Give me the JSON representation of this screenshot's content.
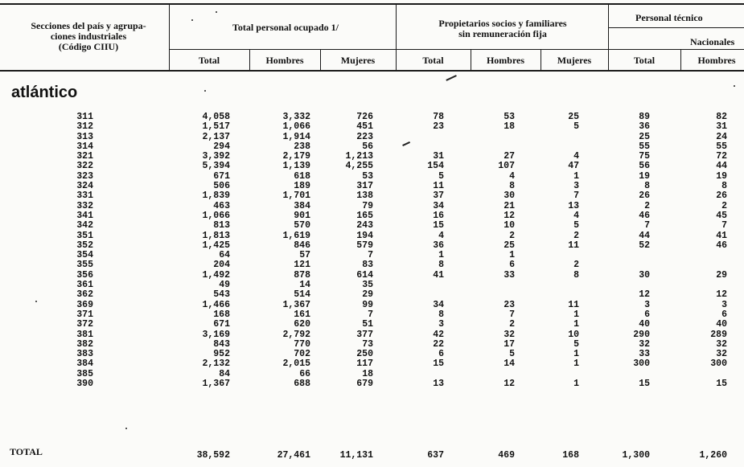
{
  "header": {
    "sections": "Secciones del país y agrupa-",
    "sections2": "ciones industriales",
    "sections3": "(Código CIIU)",
    "total": "Total personal ocupado 1/",
    "owners": "Propietarios socios y familiares",
    "owners2": "sin remuneración fija",
    "tech": "Personal técnico",
    "nacionales": "Nacionales",
    "sub": [
      "Total",
      "Hombres",
      "Mujeres",
      "Total",
      "Hombres",
      "Mujeres",
      "Total",
      "Hombres"
    ]
  },
  "region": "atlántico",
  "rows": [
    {
      "code": "311",
      "t": "4,058",
      "h": "3,332",
      "m": "726",
      "pt": "78",
      "ph": "53",
      "pm": "25",
      "nt": "89",
      "nh": "82"
    },
    {
      "code": "312",
      "t": "1,517",
      "h": "1,066",
      "m": "451",
      "pt": "23",
      "ph": "18",
      "pm": "5",
      "nt": "36",
      "nh": "31"
    },
    {
      "code": "313",
      "t": "2,137",
      "h": "1,914",
      "m": "223",
      "pt": "",
      "ph": "",
      "pm": "",
      "nt": "25",
      "nh": "24"
    },
    {
      "code": "314",
      "t": "294",
      "h": "238",
      "m": "56",
      "pt": "",
      "ph": "",
      "pm": "",
      "nt": "55",
      "nh": "55"
    },
    {
      "code": "321",
      "t": "3,392",
      "h": "2,179",
      "m": "1,213",
      "pt": "31",
      "ph": "27",
      "pm": "4",
      "nt": "75",
      "nh": "72"
    },
    {
      "code": "322",
      "t": "5,394",
      "h": "1,139",
      "m": "4,255",
      "pt": "154",
      "ph": "107",
      "pm": "47",
      "nt": "56",
      "nh": "44"
    },
    {
      "code": "323",
      "t": "671",
      "h": "618",
      "m": "53",
      "pt": "5",
      "ph": "4",
      "pm": "1",
      "nt": "19",
      "nh": "19"
    },
    {
      "code": "324",
      "t": "506",
      "h": "189",
      "m": "317",
      "pt": "11",
      "ph": "8",
      "pm": "3",
      "nt": "8",
      "nh": "8"
    },
    {
      "code": "331",
      "t": "1,839",
      "h": "1,701",
      "m": "138",
      "pt": "37",
      "ph": "30",
      "pm": "7",
      "nt": "26",
      "nh": "26"
    },
    {
      "code": "332",
      "t": "463",
      "h": "384",
      "m": "79",
      "pt": "34",
      "ph": "21",
      "pm": "13",
      "nt": "2",
      "nh": "2"
    },
    {
      "code": "341",
      "t": "1,066",
      "h": "901",
      "m": "165",
      "pt": "16",
      "ph": "12",
      "pm": "4",
      "nt": "46",
      "nh": "45"
    },
    {
      "code": "342",
      "t": "813",
      "h": "570",
      "m": "243",
      "pt": "15",
      "ph": "10",
      "pm": "5",
      "nt": "7",
      "nh": "7"
    },
    {
      "code": "351",
      "t": "1,813",
      "h": "1,619",
      "m": "194",
      "pt": "4",
      "ph": "2",
      "pm": "2",
      "nt": "44",
      "nh": "41"
    },
    {
      "code": "352",
      "t": "1,425",
      "h": "846",
      "m": "579",
      "pt": "36",
      "ph": "25",
      "pm": "11",
      "nt": "52",
      "nh": "46"
    },
    {
      "code": "354",
      "t": "64",
      "h": "57",
      "m": "7",
      "pt": "1",
      "ph": "1",
      "pm": "",
      "nt": "",
      "nh": ""
    },
    {
      "code": "355",
      "t": "204",
      "h": "121",
      "m": "83",
      "pt": "8",
      "ph": "6",
      "pm": "2",
      "nt": "",
      "nh": ""
    },
    {
      "code": "356",
      "t": "1,492",
      "h": "878",
      "m": "614",
      "pt": "41",
      "ph": "33",
      "pm": "8",
      "nt": "30",
      "nh": "29"
    },
    {
      "code": "361",
      "t": "49",
      "h": "14",
      "m": "35",
      "pt": "",
      "ph": "",
      "pm": "",
      "nt": "",
      "nh": ""
    },
    {
      "code": "362",
      "t": "543",
      "h": "514",
      "m": "29",
      "pt": "",
      "ph": "",
      "pm": "",
      "nt": "12",
      "nh": "12"
    },
    {
      "code": "369",
      "t": "1,466",
      "h": "1,367",
      "m": "99",
      "pt": "34",
      "ph": "23",
      "pm": "11",
      "nt": "3",
      "nh": "3"
    },
    {
      "code": "371",
      "t": "168",
      "h": "161",
      "m": "7",
      "pt": "8",
      "ph": "7",
      "pm": "1",
      "nt": "6",
      "nh": "6"
    },
    {
      "code": "372",
      "t": "671",
      "h": "620",
      "m": "51",
      "pt": "3",
      "ph": "2",
      "pm": "1",
      "nt": "40",
      "nh": "40"
    },
    {
      "code": "381",
      "t": "3,169",
      "h": "2,792",
      "m": "377",
      "pt": "42",
      "ph": "32",
      "pm": "10",
      "nt": "290",
      "nh": "289"
    },
    {
      "code": "382",
      "t": "843",
      "h": "770",
      "m": "73",
      "pt": "22",
      "ph": "17",
      "pm": "5",
      "nt": "32",
      "nh": "32"
    },
    {
      "code": "383",
      "t": "952",
      "h": "702",
      "m": "250",
      "pt": "6",
      "ph": "5",
      "pm": "1",
      "nt": "33",
      "nh": "32"
    },
    {
      "code": "384",
      "t": "2,132",
      "h": "2,015",
      "m": "117",
      "pt": "15",
      "ph": "14",
      "pm": "1",
      "nt": "300",
      "nh": "300"
    },
    {
      "code": "385",
      "t": "84",
      "h": "66",
      "m": "18",
      "pt": "",
      "ph": "",
      "pm": "",
      "nt": "",
      "nh": ""
    },
    {
      "code": "390",
      "t": "1,367",
      "h": "688",
      "m": "679",
      "pt": "13",
      "ph": "12",
      "pm": "1",
      "nt": "15",
      "nh": "15"
    }
  ],
  "total": {
    "label": "TOTAL",
    "t": "38,592",
    "h": "27,461",
    "m": "11,131",
    "pt": "637",
    "ph": "469",
    "pm": "168",
    "nt": "1,300",
    "nh": "1,260"
  }
}
